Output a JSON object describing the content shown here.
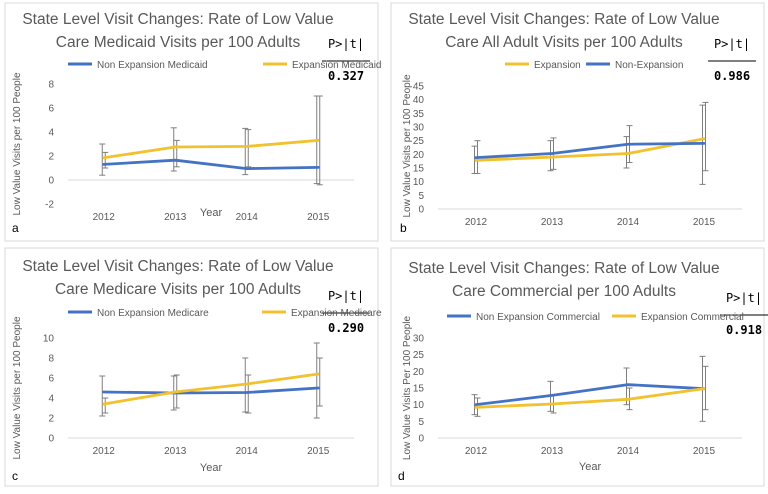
{
  "colors": {
    "blue": "#4472c4",
    "gold": "#f2c12e",
    "axis_text": "#595959",
    "title_text": "#595959",
    "grid": "#d9d9d9",
    "error_bar": "#7f7f7f",
    "border": "#d9d9d9"
  },
  "chart_data": [
    {
      "type": "line",
      "panel_letter": "a",
      "title_line1": "State Level Visit Changes: Rate of Low Value",
      "title_line2": "Care Medicaid Visits per 100 Adults",
      "xlabel": "Year",
      "ylabel": "Low Value Visits per 100 People",
      "categories": [
        "2012",
        "2013",
        "2014",
        "2015"
      ],
      "ylim": [
        -2,
        8
      ],
      "yticks": [
        -2,
        0,
        2,
        4,
        6,
        8
      ],
      "grid": false,
      "legend_position": "top",
      "p_label": "P>|t|",
      "p_value": "0.327",
      "series": [
        {
          "name": "Non Expansion  Medicaid",
          "color": "blue",
          "values": [
            1.3,
            1.65,
            0.95,
            1.05
          ],
          "err_low": [
            0.4,
            0.75,
            0.45,
            -0.3
          ],
          "err_high": [
            3.0,
            4.35,
            4.3,
            7.0
          ]
        },
        {
          "name": "Expansion Medicaid",
          "color": "gold",
          "values": [
            1.85,
            2.75,
            2.8,
            3.3
          ],
          "err_low": [
            1.0,
            1.1,
            1.1,
            -0.4
          ],
          "err_high": [
            2.3,
            3.3,
            4.2,
            7.0
          ]
        }
      ]
    },
    {
      "type": "line",
      "panel_letter": "b",
      "title_line1": "State Level Visit Changes: Rate of Low Value",
      "title_line2": "Care All Adult Visits per 100 Adults",
      "xlabel": "",
      "ylabel": "Low Value Visits per 100 People",
      "categories": [
        "2012",
        "2013",
        "2014",
        "2015"
      ],
      "ylim": [
        0,
        45
      ],
      "yticks": [
        0,
        5,
        10,
        15,
        20,
        25,
        30,
        35,
        40,
        45
      ],
      "grid": false,
      "legend_position": "top",
      "p_label": "P>|t|",
      "p_value": "0.986",
      "series": [
        {
          "name": "Expansion",
          "color": "gold",
          "values": [
            17.8,
            19.0,
            20.3,
            25.7
          ],
          "err_low": [
            13.0,
            14.0,
            15.0,
            9.0
          ],
          "err_high": [
            23.0,
            25.0,
            26.5,
            38.0
          ]
        },
        {
          "name": "Non-Expansion",
          "color": "blue",
          "values": [
            18.8,
            20.3,
            23.7,
            24.0
          ],
          "err_low": [
            13.0,
            14.5,
            17.0,
            14.0
          ],
          "err_high": [
            25.0,
            26.0,
            30.5,
            39.0
          ]
        }
      ]
    },
    {
      "type": "line",
      "panel_letter": "c",
      "title_line1": "State Level Visit Changes: Rate of Low Value",
      "title_line2": "Care Medicare Visits per 100 Adults",
      "xlabel": "Year",
      "ylabel": "Low Value Visits per 100 People",
      "categories": [
        "2012",
        "2013",
        "2014",
        "2015"
      ],
      "ylim": [
        0,
        10
      ],
      "yticks": [
        0,
        2,
        4,
        6,
        8,
        10
      ],
      "grid": false,
      "legend_position": "top",
      "p_label": "P>|t|",
      "p_value": "0.290",
      "series": [
        {
          "name": "Non Expansion Medicare",
          "color": "blue",
          "values": [
            4.6,
            4.5,
            4.55,
            5.0
          ],
          "err_low": [
            2.2,
            2.8,
            2.6,
            2.0
          ],
          "err_high": [
            6.2,
            6.2,
            8.0,
            9.5
          ]
        },
        {
          "name": "Expansion Medicare",
          "color": "gold",
          "values": [
            3.4,
            4.6,
            5.4,
            6.4
          ],
          "err_low": [
            2.5,
            3.0,
            2.5,
            3.2
          ],
          "err_high": [
            4.0,
            6.3,
            6.3,
            8.0
          ]
        }
      ]
    },
    {
      "type": "line",
      "panel_letter": "d",
      "title_line1": "State Level Visit Changes: Rate of Low Value",
      "title_line2": "Care Commercial per 100 Adults",
      "xlabel": "Year",
      "ylabel": "Low Value Visits Per 100 People",
      "categories": [
        "2012",
        "2013",
        "2014",
        "2015"
      ],
      "ylim": [
        0,
        30
      ],
      "yticks": [
        0,
        5,
        10,
        15,
        20,
        25,
        30
      ],
      "grid": false,
      "legend_position": "top",
      "p_label": "P>|t|",
      "p_value": "0.918",
      "series": [
        {
          "name": "Non Expansion Commercial",
          "color": "blue",
          "values": [
            10.0,
            12.8,
            16.0,
            14.8
          ],
          "err_low": [
            7.0,
            8.0,
            10.0,
            5.0
          ],
          "err_high": [
            13.0,
            17.0,
            21.0,
            24.5
          ]
        },
        {
          "name": "Expansion Commercial",
          "color": "gold",
          "values": [
            9.2,
            10.2,
            11.6,
            14.8
          ],
          "err_low": [
            6.5,
            7.5,
            8.5,
            8.5
          ],
          "err_high": [
            12.0,
            13.0,
            15.0,
            21.5
          ]
        }
      ]
    }
  ]
}
